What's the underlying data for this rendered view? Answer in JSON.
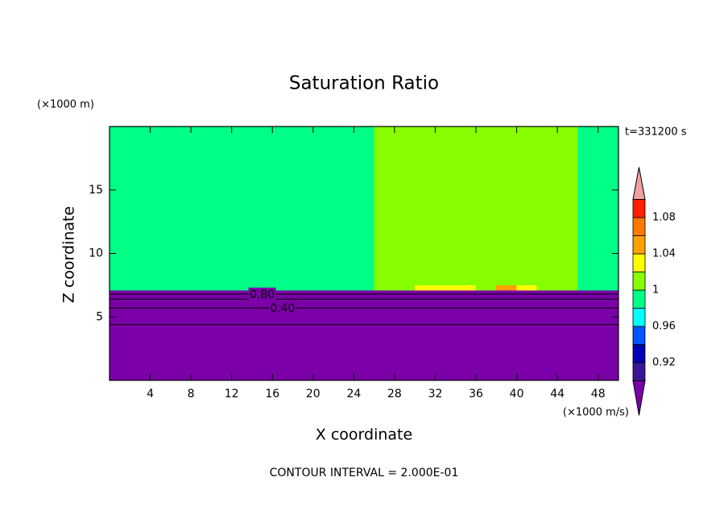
{
  "chart_data": {
    "type": "contour",
    "title": "Saturation Ratio",
    "y_unit": "(×1000 m)",
    "x_unit": "(×1000 m/s)",
    "xlabel": "X coordinate",
    "ylabel": "Z coordinate",
    "time_label": "t=331200 s",
    "footer": "CONTOUR INTERVAL = 2.000E-01",
    "xlim": [
      0,
      50
    ],
    "ylim": [
      0,
      20
    ],
    "xticks": [
      4,
      8,
      12,
      16,
      20,
      24,
      28,
      32,
      36,
      40,
      44,
      48
    ],
    "yticks": [
      5,
      10,
      15
    ],
    "x_edges": [
      0,
      2,
      4,
      6,
      8,
      10,
      12,
      14,
      16,
      18,
      20,
      22,
      24,
      26,
      28,
      30,
      32,
      34,
      36,
      38,
      40,
      42,
      44,
      46,
      48,
      50
    ],
    "y_edges": [
      0,
      4.4,
      5.7,
      6.4,
      6.8,
      7.1,
      7.5,
      20
    ],
    "z": [
      [
        0.1,
        0.1,
        0.1,
        0.1,
        0.1,
        0.1,
        0.1,
        0.1,
        0.1,
        0.1,
        0.1,
        0.1,
        0.1,
        0.1,
        0.1,
        0.1,
        0.1,
        0.1,
        0.1,
        0.1,
        0.1,
        0.1,
        0.1,
        0.1,
        0.1
      ],
      [
        0.3,
        0.3,
        0.3,
        0.3,
        0.3,
        0.3,
        0.3,
        0.3,
        0.3,
        0.3,
        0.3,
        0.3,
        0.3,
        0.3,
        0.3,
        0.3,
        0.3,
        0.3,
        0.3,
        0.3,
        0.3,
        0.3,
        0.3,
        0.3,
        0.3
      ],
      [
        0.5,
        0.5,
        0.5,
        0.5,
        0.5,
        0.5,
        0.5,
        0.5,
        0.5,
        0.5,
        0.5,
        0.5,
        0.5,
        0.5,
        0.5,
        0.5,
        0.5,
        0.5,
        0.5,
        0.5,
        0.5,
        0.5,
        0.5,
        0.5,
        0.5
      ],
      [
        0.7,
        0.7,
        0.7,
        0.7,
        0.7,
        0.7,
        0.7,
        0.7,
        0.7,
        0.7,
        0.7,
        0.7,
        0.7,
        0.7,
        0.7,
        0.7,
        0.7,
        0.7,
        0.7,
        0.7,
        0.7,
        0.7,
        0.7,
        0.7,
        0.7
      ],
      [
        0.85,
        0.85,
        0.85,
        0.85,
        0.85,
        0.85,
        0.85,
        0.85,
        0.85,
        0.85,
        0.85,
        0.85,
        0.85,
        0.85,
        0.85,
        0.85,
        0.85,
        0.85,
        0.85,
        0.85,
        0.85,
        0.85,
        0.85,
        0.85,
        0.85
      ],
      [
        0.99,
        0.99,
        0.99,
        0.99,
        0.99,
        0.99,
        0.99,
        0.99,
        0.99,
        0.99,
        0.99,
        0.99,
        0.99,
        1.01,
        1.01,
        1.03,
        1.03,
        1.03,
        1.01,
        1.05,
        1.03,
        1.01,
        1.01,
        0.99,
        0.99
      ],
      [
        0.99,
        0.99,
        0.99,
        0.99,
        0.99,
        0.99,
        0.99,
        0.99,
        0.99,
        0.99,
        0.99,
        0.99,
        0.99,
        1.01,
        1.01,
        1.01,
        1.01,
        1.01,
        1.01,
        1.01,
        1.01,
        1.01,
        1.01,
        0.99,
        0.99
      ]
    ],
    "levels": [
      0.9,
      0.92,
      0.94,
      0.96,
      0.98,
      1,
      1.02,
      1.04,
      1.06,
      1.08,
      1.1
    ],
    "colors": [
      "#7b00a8",
      "#3c1496",
      "#0000b4",
      "#0055ff",
      "#00ffff",
      "#00ff87",
      "#87ff00",
      "#ffff00",
      "#ffa000",
      "#ff7800",
      "#ff2000",
      "#f0a0a0"
    ],
    "colorbar_ticks": [
      0.92,
      0.96,
      1,
      1.04,
      1.08
    ],
    "contour_levels": [
      0.2,
      0.4,
      0.6,
      0.8
    ],
    "contour_labels": [
      {
        "value": 0.8,
        "label": "0.80"
      },
      {
        "value": 0.4,
        "label": "0.40"
      }
    ]
  }
}
